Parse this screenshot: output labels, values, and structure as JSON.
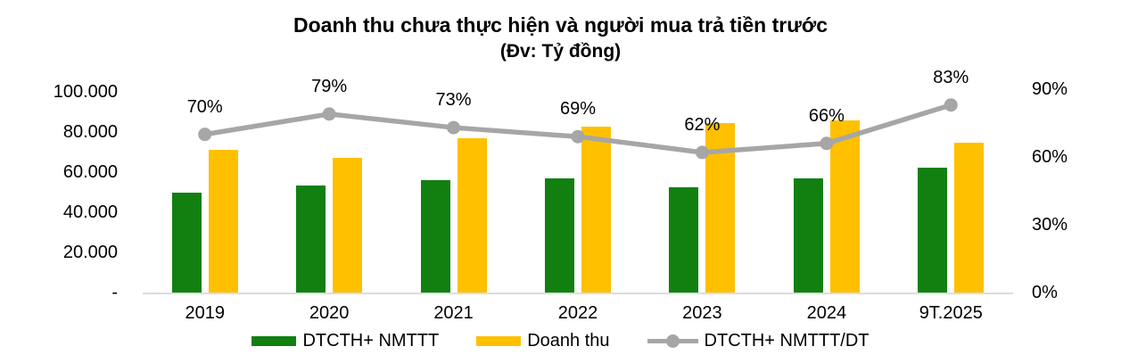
{
  "chart_data": {
    "type": "bar+line",
    "title_line1": "Doanh thu chưa thực hiện và người mua trả tiền trước",
    "title_line2": "(Đv: Tỷ đồng)",
    "categories": [
      "2019",
      "2020",
      "2021",
      "2022",
      "2023",
      "2024",
      "9T.2025"
    ],
    "series": [
      {
        "name": "DTCTH+ NMTTT",
        "type": "bar",
        "color": "#118011",
        "axis": "left",
        "values": [
          49800,
          53200,
          56100,
          57000,
          52600,
          56800,
          62200
        ]
      },
      {
        "name": "Doanh thu",
        "type": "bar",
        "color": "#FFC000",
        "axis": "left",
        "values": [
          71100,
          67200,
          76900,
          82500,
          84600,
          85800,
          74700
        ]
      },
      {
        "name": "DTCTH+ NMTTT/DT",
        "type": "line",
        "color": "#A6A6A6",
        "axis": "right",
        "values": [
          70,
          79,
          73,
          69,
          62,
          66,
          83
        ],
        "labels": [
          "70%",
          "79%",
          "73%",
          "69%",
          "62%",
          "66%",
          "83%"
        ]
      }
    ],
    "left_axis": {
      "min": 0,
      "max": 100000,
      "ticks": [
        {
          "label": "100.000",
          "value": 100000
        },
        {
          "label": "80.000",
          "value": 80000
        },
        {
          "label": "60.000",
          "value": 60000
        },
        {
          "label": "40.000",
          "value": 40000
        },
        {
          "label": "20.000",
          "value": 20000
        },
        {
          "label": "-",
          "value": 0
        }
      ]
    },
    "right_axis": {
      "min": 0,
      "max": 90,
      "ticks": [
        {
          "label": "90%",
          "value": 90
        },
        {
          "label": "60%",
          "value": 60
        },
        {
          "label": "30%",
          "value": 30
        },
        {
          "label": "0%",
          "value": 0
        }
      ]
    },
    "legend_position": "bottom",
    "grid": false,
    "axis_line_color": "#DCDCDC",
    "text_color": "#000000",
    "background_color": "#FFFFFF"
  }
}
